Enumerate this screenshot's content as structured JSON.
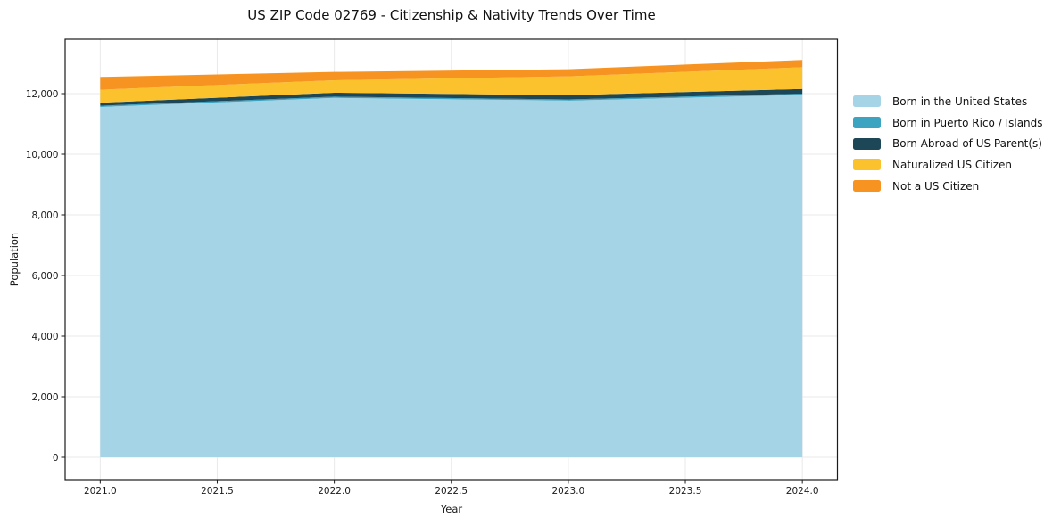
{
  "chart_data": {
    "type": "area",
    "stacked": true,
    "title": "US ZIP Code 02769 - Citizenship & Nativity Trends Over Time",
    "xlabel": "Year",
    "ylabel": "Population",
    "x": [
      2021,
      2022,
      2023,
      2024
    ],
    "series": [
      {
        "name": "Born in the United States",
        "color": "#a6d4e7",
        "values": [
          11560,
          11860,
          11770,
          11960
        ]
      },
      {
        "name": "Born in Puerto Rico / Islands",
        "color": "#3ca4c0",
        "values": [
          40,
          40,
          40,
          40
        ]
      },
      {
        "name": "Born Abroad of US Parent(s)",
        "color": "#1d4757",
        "values": [
          100,
          130,
          140,
          155
        ]
      },
      {
        "name": "Naturalized US Citizen",
        "color": "#fcc22e",
        "values": [
          430,
          410,
          620,
          715
        ]
      },
      {
        "name": "Not a US Citizen",
        "color": "#f79320",
        "values": [
          420,
          275,
          235,
          240
        ]
      }
    ],
    "x_ticks": [
      2021.0,
      2021.5,
      2022.0,
      2022.5,
      2023.0,
      2023.5,
      2024.0
    ],
    "x_tick_labels": [
      "2021.0",
      "2021.5",
      "2022.0",
      "2022.5",
      "2023.0",
      "2023.5",
      "2024.0"
    ],
    "y_ticks": [
      0,
      2000,
      4000,
      6000,
      8000,
      10000,
      12000
    ],
    "y_tick_labels": [
      "0",
      "2,000",
      "4,000",
      "6,000",
      "8,000",
      "10,000",
      "12,000"
    ],
    "xlim": [
      2020.85,
      2024.15
    ],
    "ylim": [
      -735,
      13794
    ],
    "grid": true,
    "legend_position": "right-outside",
    "colors": {
      "grid": "#e9e9e9",
      "spine": "#1a1a1a",
      "tick_label": "#1a1a1a",
      "background": "#ffffff"
    }
  }
}
